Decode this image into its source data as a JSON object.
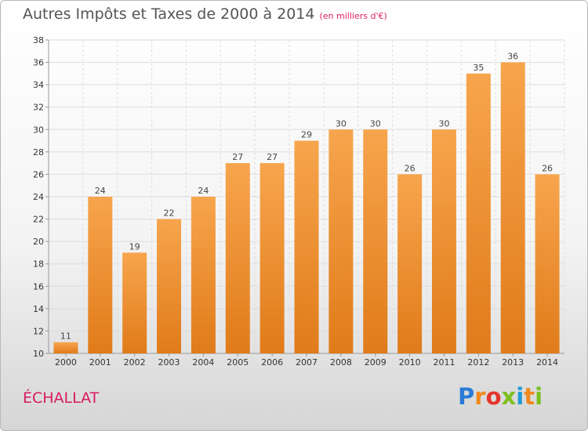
{
  "chart_data": {
    "type": "bar",
    "title": "Autres Impôts et Taxes de 2000 à 2014",
    "subtitle": "(en milliers d'€)",
    "categories": [
      "2000",
      "2001",
      "2002",
      "2003",
      "2004",
      "2005",
      "2006",
      "2007",
      "2008",
      "2009",
      "2010",
      "2011",
      "2012",
      "2013",
      "2014"
    ],
    "values": [
      11,
      24,
      19,
      22,
      24,
      27,
      27,
      29,
      30,
      30,
      26,
      30,
      35,
      36,
      26
    ],
    "ylim": [
      10,
      38
    ],
    "yticks": [
      10,
      12,
      14,
      16,
      18,
      20,
      22,
      24,
      26,
      28,
      30,
      32,
      34,
      36,
      38
    ],
    "grid": true,
    "bar_color_top": "#f7a54d",
    "bar_color_bottom": "#e07b1a"
  },
  "commune": "ÉCHALLAT",
  "logo": {
    "letters": [
      "P",
      "r",
      "o",
      "x",
      "i",
      "t",
      "i"
    ],
    "colors": [
      "#2b7bd6",
      "#f08a1e",
      "#e5342a",
      "#7cbf1e",
      "#1e9bd6",
      "#f08a1e",
      "#7cbf1e"
    ]
  }
}
